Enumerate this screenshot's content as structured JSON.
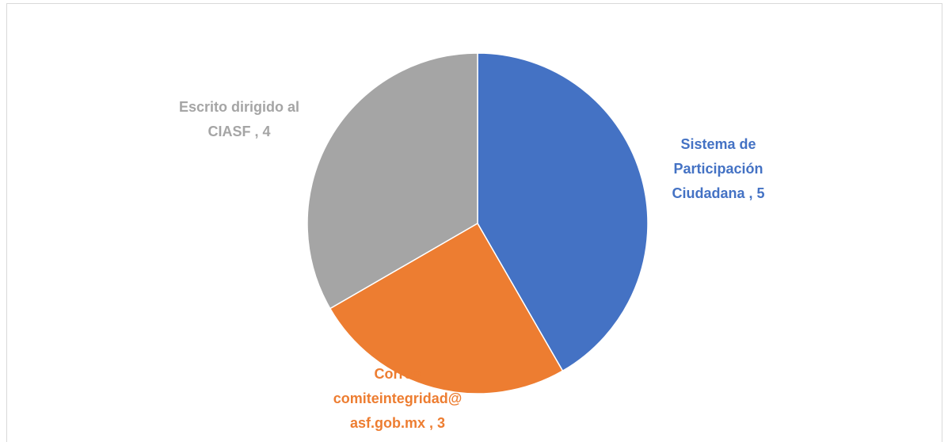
{
  "chart_data": {
    "type": "pie",
    "values": [
      5,
      3,
      4
    ],
    "value_labels": [
      [
        "Sistema de",
        "Participación",
        "Ciudadana , 5"
      ],
      [
        "Correo",
        "comiteintegridad@",
        "asf.gob.mx , 3"
      ],
      [
        "Escrito dirigido al",
        "CIASF , 4"
      ]
    ],
    "colors": [
      "#4472c4",
      "#ed7d31",
      "#a5a5a5"
    ]
  }
}
